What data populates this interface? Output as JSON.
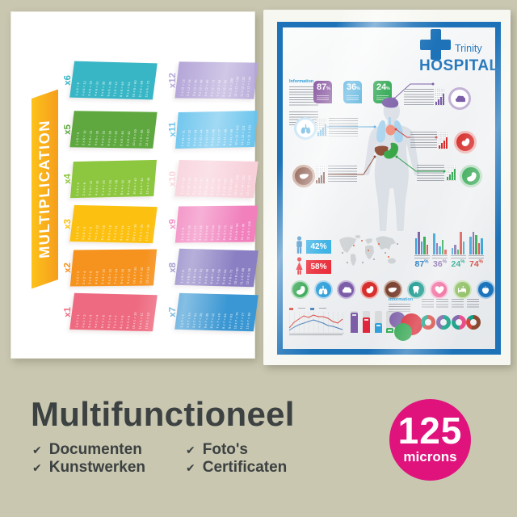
{
  "background_color": "#c9c7b0",
  "left_poster": {
    "title": "MULTIPLICATION",
    "ribbon_colors": [
      "#fcc21b",
      "#f69d1c"
    ],
    "columns": [
      {
        "blocks": [
          {
            "label": "x6",
            "color": "#38b6c5",
            "rows": [
              "1 x 6 = 6",
              "2 x 6 = 12",
              "3 x 6 = 18",
              "4 x 6 = 24",
              "5 x 6 = 30",
              "6 x 6 = 36",
              "7 x 6 = 42",
              "8 x 6 = 48",
              "9 x 6 = 54",
              "10 x 6 = 60",
              "11 x 6 = 66",
              "12 x 6 = 72"
            ]
          },
          {
            "label": "x5",
            "color": "#5ea83f",
            "rows": [
              "1 x 5 = 5",
              "2 x 5 = 10",
              "3 x 5 = 15",
              "4 x 5 = 20",
              "5 x 5 = 25",
              "6 x 5 = 30",
              "7 x 5 = 35",
              "8 x 5 = 40",
              "9 x 5 = 45",
              "10 x 5 = 50",
              "11 x 5 = 55",
              "12 x 5 = 60"
            ]
          },
          {
            "label": "x4",
            "color": "#8dc63f",
            "rows": [
              "1 x 4 = 4",
              "2 x 4 = 8",
              "3 x 4 = 12",
              "4 x 4 = 16",
              "5 x 4 = 20",
              "6 x 4 = 24",
              "7 x 4 = 28",
              "8 x 4 = 32",
              "9 x 4 = 36",
              "10 x 4 = 40",
              "11 x 4 = 44",
              "12 x 4 = 48"
            ]
          },
          {
            "label": "x3",
            "color": "#fcc011",
            "rows": [
              "1 x 3 = 3",
              "2 x 3 = 6",
              "3 x 3 = 9",
              "4 x 3 = 12",
              "5 x 3 = 15",
              "6 x 3 = 18",
              "7 x 3 = 21",
              "8 x 3 = 24",
              "9 x 3 = 27",
              "10 x 3 = 30",
              "11 x 3 = 33",
              "12 x 3 = 36"
            ]
          },
          {
            "label": "x2",
            "color": "#f6921e",
            "rows": [
              "1 x 2 = 2",
              "2 x 2 = 4",
              "3 x 2 = 6",
              "4 x 2 = 8",
              "5 x 2 = 10",
              "6 x 2 = 12",
              "7 x 2 = 14",
              "8 x 2 = 16",
              "9 x 2 = 18",
              "10 x 2 = 20",
              "11 x 2 = 22",
              "12 x 2 = 24"
            ]
          },
          {
            "label": "x1",
            "color": "#ee6a80",
            "rows": [
              "1 x 1 = 1",
              "2 x 1 = 2",
              "3 x 1 = 3",
              "4 x 1 = 4",
              "5 x 1 = 5",
              "6 x 1 = 6",
              "7 x 1 = 7",
              "8 x 1 = 8",
              "9 x 1 = 9",
              "10 x 1 = 10",
              "11 x 1 = 11",
              "12 x 1 = 12"
            ]
          }
        ]
      },
      {
        "blocks": [
          {
            "label": "x12",
            "color": "#b4a6d8",
            "rows": [
              "1 x 12 = 12",
              "2 x 12 = 24",
              "3 x 12 = 36",
              "4 x 12 = 48",
              "5 x 12 = 60",
              "6 x 12 = 72",
              "7 x 12 = 84",
              "8 x 12 = 96",
              "9 x 12 = 108",
              "10 x 12 = 120",
              "11 x 12 = 132",
              "12 x 12 = 144"
            ]
          },
          {
            "label": "x11",
            "color": "#68c3ed",
            "rows": [
              "1 x 11 = 11",
              "2 x 11 = 22",
              "3 x 11 = 33",
              "4 x 11 = 44",
              "5 x 11 = 55",
              "6 x 11 = 66",
              "7 x 11 = 77",
              "8 x 11 = 88",
              "9 x 11 = 99",
              "10 x 11 = 110",
              "11 x 11 = 121",
              "12 x 11 = 132"
            ]
          },
          {
            "label": "x10",
            "color": "#f8d0da",
            "rows": [
              "1 x 10 = 10",
              "2 x 10 = 20",
              "3 x 10 = 30",
              "4 x 10 = 40",
              "5 x 10 = 50",
              "6 x 10 = 60",
              "7 x 10 = 70",
              "8 x 10 = 80",
              "9 x 10 = 90",
              "10 x 10 = 100",
              "11 x 10 = 110",
              "12 x 10 = 120"
            ]
          },
          {
            "label": "x9",
            "color": "#f180bd",
            "rows": [
              "1 x 9 = 9",
              "2 x 9 = 18",
              "3 x 9 = 27",
              "4 x 9 = 36",
              "5 x 9 = 45",
              "6 x 9 = 54",
              "7 x 9 = 63",
              "8 x 9 = 72",
              "9 x 9 = 81",
              "10 x 9 = 90",
              "11 x 9 = 99",
              "12 x 9 = 108"
            ]
          },
          {
            "label": "x8",
            "color": "#8b7fc3",
            "rows": [
              "1 x 8 = 8",
              "2 x 8 = 16",
              "3 x 8 = 24",
              "4 x 8 = 32",
              "5 x 8 = 40",
              "6 x 8 = 48",
              "7 x 8 = 56",
              "8 x 8 = 64",
              "9 x 8 = 72",
              "10 x 8 = 80",
              "11 x 8 = 88",
              "12 x 8 = 96"
            ]
          },
          {
            "label": "x7",
            "color": "#3a97d3",
            "rows": [
              "1 x 7 = 7",
              "2 x 7 = 14",
              "3 x 7 = 21",
              "4 x 7 = 28",
              "5 x 7 = 35",
              "6 x 7 = 42",
              "7 x 7 = 49",
              "8 x 7 = 56",
              "9 x 7 = 63",
              "10 x 7 = 70",
              "11 x 7 = 77",
              "12 x 7 = 84"
            ]
          }
        ]
      }
    ]
  },
  "right_poster": {
    "frame_color": "#1d72b8",
    "brand": {
      "name": "Trinity",
      "title": "HOSPITAL",
      "cross_color": "#1d72b8",
      "text_color": "#2779bd"
    },
    "info_heading": "Information",
    "info_heading_2": "Information",
    "stat_badges": [
      {
        "value": "87",
        "unit": "%",
        "color": "#8b5ba2"
      },
      {
        "value": "36",
        "unit": "%",
        "color": "#2d9fd6"
      },
      {
        "value": "24",
        "unit": "%",
        "color": "#27a44b"
      }
    ],
    "callouts": [
      {
        "organ": "brain",
        "color": "#7b5ea7",
        "ring": "#c3b2d6",
        "style": "outline"
      },
      {
        "organ": "lungs",
        "color": "#7fbfe6",
        "ring": "#cde6f5",
        "style": "outline"
      },
      {
        "organ": "heart-organ",
        "color": "#d6302e",
        "ring": "#efb9b8",
        "style": "solid"
      },
      {
        "organ": "liver",
        "color": "#7d4536",
        "ring": "#c5a08f",
        "style": "solid"
      },
      {
        "organ": "stomach",
        "color": "#27a147",
        "ring": "#b4dcbf",
        "style": "solid"
      }
    ],
    "gender_stats": [
      {
        "icon": "male",
        "value": "42%",
        "box_color": "#29abe2",
        "icon_color": "#1f7ec0"
      },
      {
        "icon": "female",
        "value": "58%",
        "box_color": "#e8212e",
        "icon_color": "#e8212e"
      }
    ],
    "mini_stats": [
      {
        "value": "87",
        "unit": "%",
        "color": "#1c75bc",
        "bars": [
          [
            20,
            "#2e9fd8"
          ],
          [
            28,
            "#7b5ea7"
          ],
          [
            16,
            "#2e9fd8"
          ],
          [
            22,
            "#27a44b"
          ],
          [
            12,
            "#d6453d"
          ]
        ]
      },
      {
        "value": "36",
        "unit": "%",
        "color": "#7b5ea7",
        "bars": [
          [
            26,
            "#2e9fd8"
          ],
          [
            14,
            "#7b5ea7"
          ],
          [
            10,
            "#2e9fd8"
          ],
          [
            18,
            "#27a44b"
          ],
          [
            6,
            "#d6453d"
          ]
        ]
      },
      {
        "value": "24",
        "unit": "%",
        "color": "#14a086",
        "bars": [
          [
            8,
            "#2e9fd8"
          ],
          [
            12,
            "#7b5ea7"
          ],
          [
            6,
            "#27a44b"
          ],
          [
            28,
            "#d6453d"
          ],
          [
            16,
            "#2e9fd8"
          ]
        ]
      },
      {
        "value": "74",
        "unit": "%",
        "color": "#d6453d",
        "bars": [
          [
            22,
            "#2e9fd8"
          ],
          [
            28,
            "#7b5ea7"
          ],
          [
            24,
            "#27a44b"
          ],
          [
            14,
            "#d6453d"
          ],
          [
            20,
            "#2e9fd8"
          ]
        ]
      }
    ],
    "organ_row": [
      {
        "icon": "stomach",
        "color": "#27a147",
        "ring": "#a7d7b4"
      },
      {
        "icon": "lungs",
        "color": "#2e9fd8",
        "ring": "#aed6ef"
      },
      {
        "icon": "brain",
        "color": "#7b5ea7",
        "ring": "#c5b5da"
      },
      {
        "icon": "heart-organ",
        "color": "#d6302e",
        "ring": "#efb3b2"
      },
      {
        "icon": "liver",
        "color": "#7d4536",
        "ring": "#c5a795"
      },
      {
        "icon": "tooth",
        "color": "#0e9488",
        "ring": "#a4d4cf"
      },
      {
        "icon": "heart",
        "color": "#ef5b92",
        "ring": "#f7bcd3"
      },
      {
        "icon": "sleep",
        "color": "#8fbf63",
        "ring": "#cce3b6"
      },
      {
        "icon": "apple",
        "color": "#1c75bc",
        "ring": "#a8cbe7"
      }
    ],
    "bottom_bars": [
      [
        "#7b5ea7",
        25
      ],
      [
        "#e0263c",
        19
      ],
      [
        "#2e9fd8",
        12
      ],
      [
        "#27a44b",
        6
      ]
    ],
    "donuts": [
      [
        [
          "#d6453d",
          62
        ],
        [
          "#14a086",
          38
        ]
      ],
      [
        [
          "#14a086",
          55
        ],
        [
          "#7b5ea7",
          45
        ]
      ],
      [
        [
          "#e84c8b",
          50
        ],
        [
          "#14a086",
          30
        ],
        [
          "#7b5ea7",
          20
        ]
      ],
      [
        [
          "#8a4a32",
          55
        ],
        [
          "#d6453d",
          30
        ],
        [
          "#14a086",
          15
        ]
      ]
    ],
    "venn_colors": [
      "#7b5ea7",
      "#d6232f",
      "#27a147"
    ],
    "line_chart": {
      "series": [
        {
          "color": "#d6453d",
          "points": [
            20,
            13,
            9,
            5,
            7,
            4,
            6,
            6,
            8,
            12,
            14,
            9
          ]
        },
        {
          "color": "#4a7fb5",
          "points": [
            23,
            19,
            16,
            14,
            12,
            10,
            12,
            14,
            17,
            18,
            20,
            22
          ]
        }
      ]
    }
  },
  "caption": {
    "title": "Multifunctioneel",
    "check": "✔",
    "items": [
      "Documenten",
      "Kunstwerken",
      "Foto's",
      "Certificaten"
    ]
  },
  "badge": {
    "value": "125",
    "unit": "microns",
    "color": "#e0137d"
  }
}
